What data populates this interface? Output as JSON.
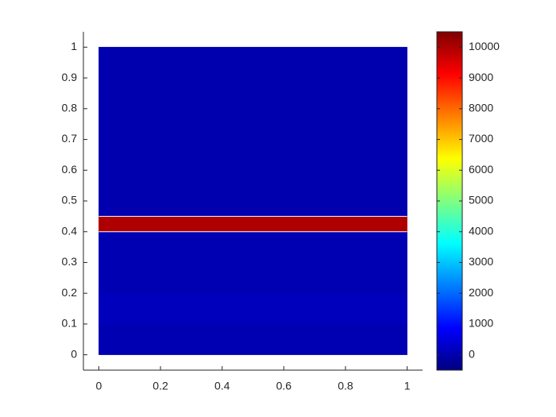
{
  "chart_data": {
    "type": "heatmap",
    "y_edges": [
      0,
      0.1,
      0.2,
      0.4,
      0.45,
      1
    ],
    "x_extent": [
      0,
      1
    ],
    "values": [
      50,
      150,
      50,
      10000,
      0
    ],
    "colormap": "jet",
    "xlim": [
      -0.05,
      1.05
    ],
    "xticks": [
      0,
      0.2,
      0.4,
      0.6,
      0.8,
      1
    ],
    "ylim": [
      -0.05,
      1.05
    ],
    "yticks": [
      0,
      0.1,
      0.2,
      0.3,
      0.4,
      0.5,
      0.6,
      0.7,
      0.8,
      0.9,
      1
    ],
    "clim": [
      -500,
      10500
    ],
    "cticks": [
      0,
      1000,
      2000,
      3000,
      4000,
      5000,
      6000,
      7000,
      8000,
      9000,
      10000
    ]
  }
}
